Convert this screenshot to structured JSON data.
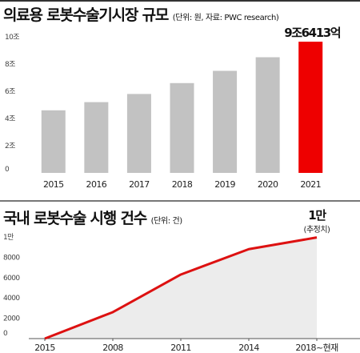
{
  "charts": {
    "top": {
      "title": "의료용 로봇수술기시장 규모",
      "subtitle": "(단위: 원, 자료: PWC research)"
    },
    "bottom": {
      "title": "국내 로봇수술 시행 건수",
      "subtitle": "(단위: 건)"
    }
  },
  "chart_data": [
    {
      "type": "bar",
      "title": "의료용 로봇수술기시장 규모",
      "subtitle": "(단위: 원, 자료: PWC research)",
      "categories": [
        "2015",
        "2016",
        "2017",
        "2018",
        "2019",
        "2020",
        "2021"
      ],
      "values": [
        4.6,
        5.2,
        5.8,
        6.6,
        7.5,
        8.5,
        9.6413
      ],
      "y_ticks": [
        "0",
        "2조",
        "4조",
        "6조",
        "8조",
        "10조"
      ],
      "ylim": [
        0,
        10
      ],
      "highlight_index": 6,
      "annotation": "9조6413억",
      "colors": {
        "bar": "#c2c2c2",
        "highlight": "#ee0000"
      },
      "grid": false
    },
    {
      "type": "area",
      "title": "국내 로봇수술 시행 건수",
      "subtitle": "(단위: 건)",
      "x": [
        "2015",
        "2008",
        "2011",
        "2014",
        "2018~현재"
      ],
      "values": [
        0,
        2600,
        6300,
        8800,
        9950
      ],
      "y_ticks": [
        "0",
        "2000",
        "4000",
        "6000",
        "8000",
        "1만"
      ],
      "ylim": [
        0,
        10000
      ],
      "annotation": "1만",
      "annotation_sub": "(추정치)",
      "colors": {
        "line": "#dd1111",
        "fill": "#ececec"
      },
      "grid": false
    }
  ]
}
